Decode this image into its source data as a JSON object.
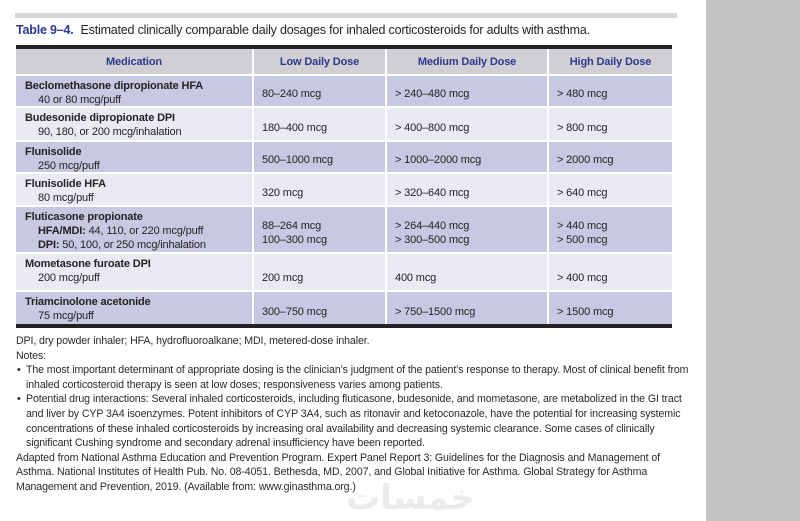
{
  "colors": {
    "accent_navy": "#2b3a8f",
    "row_lavender": "#c7c8e2",
    "row_light": "#e9eaf4",
    "header_gray": "#d1cfd4",
    "side_panel_gray": "#c3c2c4",
    "border_black": "#262223"
  },
  "header": {
    "table_label": "Table 9–4.",
    "table_caption": "Estimated clinically comparable daily dosages for inhaled corticosteroids for adults with asthma."
  },
  "table": {
    "columns": [
      "Medication",
      "Low Daily Dose",
      "Medium Daily Dose",
      "High Daily Dose"
    ],
    "rows": [
      {
        "name": "Beclomethasone dipropionate HFA",
        "strengths": [
          {
            "b": "",
            "t": "40 or 80 mcg/puff"
          }
        ],
        "low": [
          "80–240 mcg"
        ],
        "medium": [
          "> 240–480 mcg"
        ],
        "high": [
          "> 480 mcg"
        ]
      },
      {
        "name": "Budesonide dipropionate DPI",
        "strengths": [
          {
            "b": "",
            "t": "90, 180, or 200 mcg/inhalation"
          }
        ],
        "low": [
          "180–400 mcg"
        ],
        "medium": [
          "> 400–800 mcg"
        ],
        "high": [
          "> 800 mcg"
        ]
      },
      {
        "name": "Flunisolide",
        "strengths": [
          {
            "b": "",
            "t": "250 mcg/puff"
          }
        ],
        "low": [
          "500–1000 mcg"
        ],
        "medium": [
          "> 1000–2000 mcg"
        ],
        "high": [
          "> 2000 mcg"
        ]
      },
      {
        "name": "Flunisolide HFA",
        "strengths": [
          {
            "b": "",
            "t": "80 mcg/puff"
          }
        ],
        "low": [
          "320 mcg"
        ],
        "medium": [
          "> 320–640 mcg"
        ],
        "high": [
          "> 640 mcg"
        ]
      },
      {
        "name": "Fluticasone propionate",
        "strengths": [
          {
            "b": "HFA/MDI:",
            "t": " 44, 110, or 220 mcg/puff"
          },
          {
            "b": "DPI:",
            "t": " 50, 100, or 250 mcg/inhalation"
          }
        ],
        "low": [
          "88–264 mcg",
          "100–300 mcg"
        ],
        "medium": [
          "> 264–440 mcg",
          "> 300–500 mcg"
        ],
        "high": [
          "> 440 mcg",
          "> 500 mcg"
        ]
      },
      {
        "name": "Mometasone furoate DPI",
        "strengths": [
          {
            "b": "",
            "t": "200 mcg/puff"
          }
        ],
        "low": [
          "200 mcg"
        ],
        "medium": [
          "400 mcg"
        ],
        "high": [
          "> 400 mcg"
        ]
      },
      {
        "name": "Triamcinolone acetonide",
        "strengths": [
          {
            "b": "",
            "t": "75 mcg/puff"
          }
        ],
        "low": [
          "300–750 mcg"
        ],
        "medium": [
          "> 750–1500 mcg"
        ],
        "high": [
          "> 1500 mcg"
        ]
      }
    ]
  },
  "footnotes": {
    "abbreviations": "DPI, dry powder inhaler; HFA, hydrofluoroalkane; MDI, metered-dose inhaler.",
    "notes_label": "Notes:",
    "bullet_glyph": "•",
    "notes": [
      "The most important determinant of appropriate dosing is the clinician’s judgment of the patient’s response to therapy. Most of clinical benefit from inhaled corticosteroid therapy is seen at low doses; responsiveness varies among patients.",
      "Potential drug interactions: Several inhaled corticosteroids, including fluticasone, budesonide, and mometasone, are metabolized in the GI tract and liver by CYP 3A4 isoenzymes. Potent inhibitors of CYP 3A4, such as ritonavir and ketoconazole, have the potential for increasing systemic concentrations of these inhaled corticosteroids by increasing oral availability and decreasing systemic clearance. Some cases of clinically significant Cushing syndrome and secondary adrenal insufficiency have been reported."
    ],
    "source": "Adapted from National Asthma Education and Prevention Program. Expert Panel Report 3: Guidelines for the Diagnosis and Management of Asthma. National Institutes of Health Pub. No. 08-4051. Bethesda, MD, 2007, and Global Initiative for Asthma. Global Strategy for Asthma Management and Prevention, 2019. (Available from: www.ginasthma.org.)"
  },
  "watermark": {
    "text": "خمسات"
  }
}
